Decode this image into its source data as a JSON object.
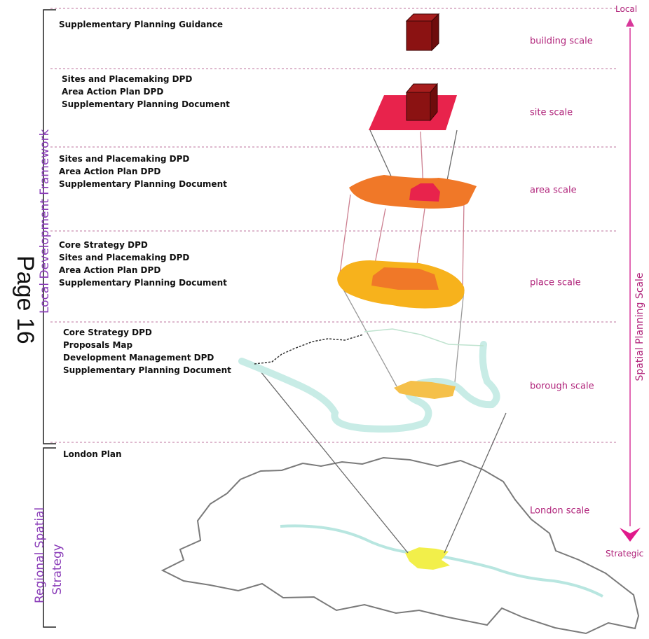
{
  "page_label": "Page 16",
  "frameworks": {
    "local": "Local Development Framework",
    "regional_line1": "Regional Spatial",
    "regional_line2": "Strategy"
  },
  "axis": {
    "title": "Spatial Planning Scale",
    "top_label": "Local",
    "bottom_label": "Strategic"
  },
  "tiers": [
    {
      "scale": "building scale",
      "documents": [
        "Supplementary Planning Guidance"
      ]
    },
    {
      "scale": "site scale",
      "documents": [
        "Sites and Placemaking DPD",
        "Area Action Plan DPD",
        "Supplementary Planning Document"
      ]
    },
    {
      "scale": "area scale",
      "documents": [
        "Sites and Placemaking DPD",
        "Area Action Plan DPD",
        "Supplementary Planning Document"
      ]
    },
    {
      "scale": "place scale",
      "documents": [
        "Core Strategy DPD",
        "Sites and Placemaking DPD",
        "Area Action Plan DPD",
        "Supplementary Planning Document"
      ]
    },
    {
      "scale": "borough scale",
      "documents": [
        "Core Strategy DPD",
        "Proposals Map",
        "Development Management DPD",
        "Supplementary Planning Document"
      ]
    },
    {
      "scale": "London scale",
      "documents": [
        "London Plan"
      ]
    }
  ],
  "colors": {
    "building": "#8b1212",
    "site": "#e8234c",
    "area": "#f07828",
    "place": "#f7b21c",
    "borough": "#f5c04a",
    "river": "#c8ece6",
    "london": "#f2ef4a",
    "accent": "#b0237a",
    "framework": "#8a3cb8"
  }
}
